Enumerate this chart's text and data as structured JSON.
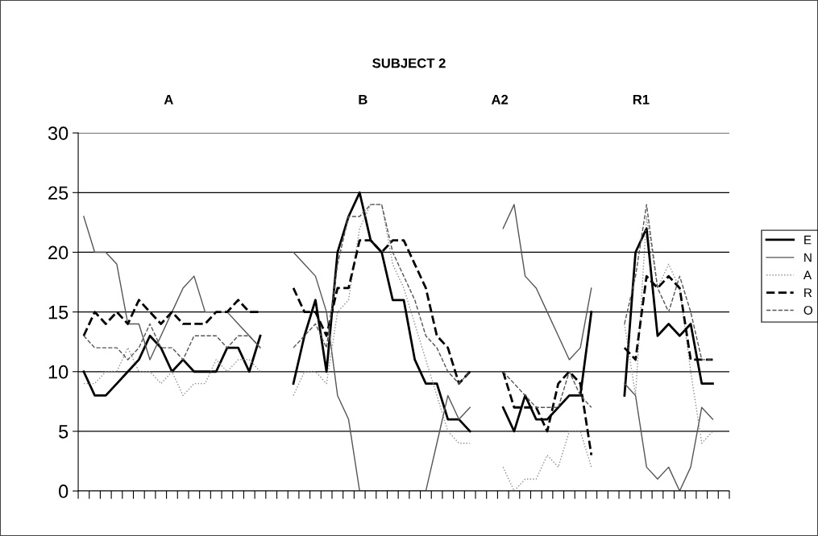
{
  "chart_data": {
    "type": "line",
    "title": "SUBJECT 2",
    "annotations": [
      "A",
      "B",
      "A2",
      "R1"
    ],
    "categories": [
      null,
      null,
      null,
      null,
      null,
      null,
      null,
      null,
      null,
      null,
      null,
      null,
      null,
      null,
      null,
      null,
      null,
      null,
      null,
      null,
      null,
      null,
      null,
      null,
      null,
      null,
      null,
      null,
      null,
      null,
      null,
      null,
      null,
      null,
      null,
      null,
      null,
      null,
      null,
      null,
      null,
      null,
      null,
      null,
      null,
      null,
      null,
      null,
      null,
      null,
      null,
      null,
      null,
      null,
      null,
      null,
      null,
      null,
      null
    ],
    "series": [
      {
        "name": "E",
        "color": "#000000",
        "line_style": "solid",
        "values": [
          10,
          8,
          8,
          9,
          10,
          11,
          13,
          12,
          10,
          11,
          10,
          10,
          10,
          12,
          12,
          10,
          13,
          null,
          null,
          9,
          13,
          16,
          10,
          20,
          23,
          25,
          21,
          20,
          16,
          16,
          11,
          9,
          9,
          6,
          6,
          5,
          null,
          null,
          7,
          5,
          8,
          6,
          6,
          7,
          8,
          8,
          15,
          null,
          null,
          8,
          20,
          22,
          13,
          14,
          13,
          14,
          9,
          9,
          null
        ]
      },
      {
        "name": "N",
        "color": "#555555",
        "line_style": "solid",
        "values": [
          23,
          20,
          20,
          19,
          14,
          14,
          11,
          13,
          15,
          17,
          18,
          15,
          15,
          15,
          14,
          13,
          12,
          null,
          null,
          20,
          19,
          18,
          15,
          8,
          6,
          0,
          0,
          0,
          0,
          0,
          0,
          0,
          4,
          8,
          6,
          7,
          null,
          null,
          22,
          24,
          18,
          17,
          15,
          13,
          11,
          12,
          17,
          null,
          null,
          9,
          8,
          2,
          1,
          2,
          0,
          2,
          7,
          6,
          null
        ]
      },
      {
        "name": "A",
        "color": "#8c8c8c",
        "line_style": "dotted",
        "values": [
          9,
          9,
          10,
          10,
          12,
          10,
          10,
          9,
          10,
          8,
          9,
          9,
          11,
          10,
          11,
          11,
          10,
          null,
          null,
          8,
          10,
          10,
          9,
          15,
          16,
          22,
          24,
          24,
          19,
          17,
          14,
          11,
          8,
          5,
          4,
          4,
          null,
          null,
          2,
          0,
          1,
          1,
          3,
          2,
          5,
          5,
          2,
          null,
          null,
          14,
          8,
          23,
          17,
          19,
          17,
          10,
          4,
          5,
          null
        ]
      },
      {
        "name": "R",
        "color": "#000000",
        "line_style": "dashed",
        "values": [
          13,
          15,
          14,
          15,
          14,
          16,
          15,
          14,
          15,
          14,
          14,
          14,
          15,
          15,
          16,
          15,
          15,
          null,
          null,
          17,
          15,
          15,
          13,
          17,
          17,
          21,
          21,
          20,
          21,
          21,
          19,
          17,
          13,
          12,
          9,
          10,
          null,
          null,
          10,
          7,
          7,
          7,
          5,
          9,
          10,
          9,
          3,
          null,
          null,
          12,
          11,
          18,
          17,
          18,
          17,
          11,
          11,
          11,
          null
        ]
      },
      {
        "name": "O",
        "color": "#555555",
        "line_style": "dashed",
        "values": [
          13,
          12,
          12,
          12,
          11,
          12,
          14,
          12,
          12,
          11,
          13,
          13,
          13,
          12,
          13,
          13,
          12,
          null,
          null,
          12,
          13,
          14,
          12,
          19,
          23,
          23,
          24,
          24,
          20,
          18,
          16,
          13,
          12,
          10,
          9,
          10,
          null,
          null,
          10,
          9,
          8,
          7,
          7,
          7,
          10,
          8,
          7,
          null,
          null,
          14,
          18,
          24,
          17,
          15,
          18,
          15,
          11,
          11,
          null
        ]
      }
    ],
    "ylim": [
      0,
      30
    ],
    "yticks": [
      0,
      5,
      10,
      15,
      20,
      25,
      30
    ],
    "grid": "y",
    "legend": "right",
    "tick_labels": "y",
    "marker": "none"
  }
}
